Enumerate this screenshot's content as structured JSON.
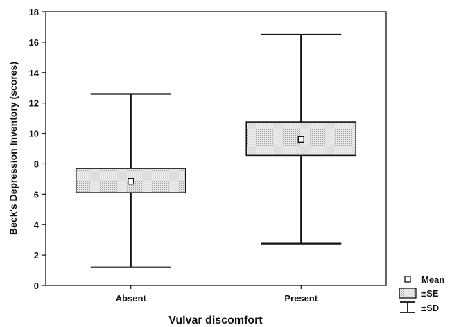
{
  "chart_data": {
    "type": "box",
    "title": "",
    "xlabel": "Vulvar discomfort",
    "ylabel": "Beck's Depression Inventory (scores)",
    "ylim": [
      0,
      18
    ],
    "yticks": [
      0,
      2,
      4,
      6,
      8,
      10,
      12,
      14,
      16,
      18
    ],
    "grid": false,
    "legend_position": "bottom-right",
    "categories": [
      "Absent",
      "Present"
    ],
    "series": [
      {
        "category": "Absent",
        "mean": 6.85,
        "se_low": 6.1,
        "se_high": 7.7,
        "sd_low": 1.2,
        "sd_high": 12.6
      },
      {
        "category": "Present",
        "mean": 9.6,
        "se_low": 8.55,
        "se_high": 10.75,
        "sd_low": 2.75,
        "sd_high": 16.5
      }
    ],
    "legend": [
      {
        "label": "Mean",
        "symbol": "square-marker"
      },
      {
        "label": "±SE",
        "symbol": "hatched-box"
      },
      {
        "label": "±SD",
        "symbol": "whisker"
      }
    ],
    "colors": {
      "box_fill": "#e0e0e0",
      "line": "#111111"
    }
  }
}
